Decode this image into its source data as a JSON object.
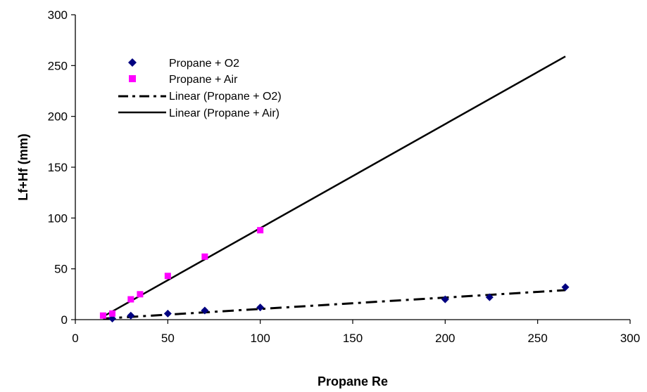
{
  "chart_data": {
    "type": "scatter",
    "title": "",
    "xlabel": "Propane Re",
    "ylabel": "Lf+Hf (mm)",
    "xlim": [
      0,
      300
    ],
    "ylim": [
      0,
      300
    ],
    "xticks": [
      0,
      50,
      100,
      150,
      200,
      250,
      300
    ],
    "yticks": [
      0,
      50,
      100,
      150,
      200,
      250,
      300
    ],
    "grid": false,
    "legend_position": "top-left",
    "series": [
      {
        "name": "Propane + O2",
        "kind": "points",
        "marker": "diamond",
        "color": "#000080",
        "x": [
          20,
          30,
          50,
          70,
          100,
          200,
          224,
          265
        ],
        "y": [
          1,
          4,
          6,
          9,
          12,
          20,
          22,
          32
        ]
      },
      {
        "name": "Propane + Air",
        "kind": "points",
        "marker": "square",
        "color": "#FF00FF",
        "x": [
          15,
          20,
          30,
          35,
          50,
          70,
          100
        ],
        "y": [
          4,
          6,
          20,
          25,
          43,
          62,
          88
        ]
      },
      {
        "name": "Linear (Propane + O2)",
        "kind": "trendline",
        "style": "dash-dot",
        "color": "#000000",
        "x": [
          15,
          265
        ],
        "y": [
          1,
          29
        ]
      },
      {
        "name": "Linear (Propane + Air)",
        "kind": "trendline",
        "style": "solid",
        "color": "#000000",
        "x": [
          15,
          265
        ],
        "y": [
          3,
          259
        ]
      }
    ]
  }
}
